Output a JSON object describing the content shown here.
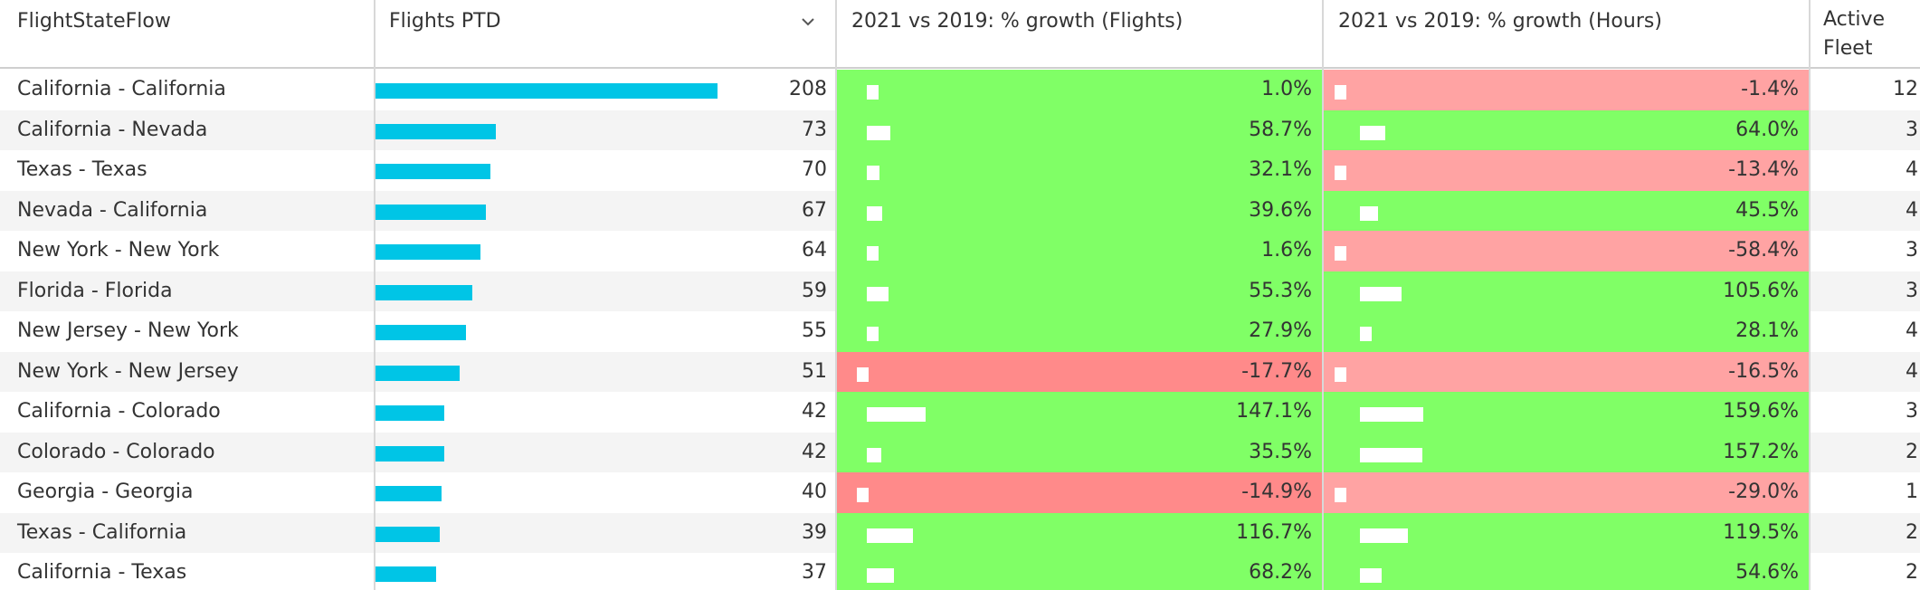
{
  "headers": {
    "label": "FlightStateFlow",
    "flights": "Flights PTD",
    "growth_flights": "2021 vs 2019: % growth (Flights)",
    "growth_hours": "2021 vs 2019: % growth (Hours)",
    "fleet_line1": "Active",
    "fleet_line2": "Fleet"
  },
  "sort_icon": "chevron-down-icon",
  "colors": {
    "flights_bar": "#00c5e6",
    "pos_flights": "#80ff66",
    "neg_flights": "#ff8a8a",
    "pos_hours": "#80ff66",
    "neg_hours": "#ffa3a3",
    "mini_bar": "#ffffff"
  },
  "flights_max": 208,
  "rows": [
    {
      "label": "California - California",
      "flights": 208,
      "flights_text": "208",
      "g_flights": 1.0,
      "g_flights_text": "1.0%",
      "g_hours": -1.4,
      "g_hours_text": "-1.4%",
      "fleet": "12"
    },
    {
      "label": "California - Nevada",
      "flights": 73,
      "flights_text": "73",
      "g_flights": 58.7,
      "g_flights_text": "58.7%",
      "g_hours": 64.0,
      "g_hours_text": "64.0%",
      "fleet": "3"
    },
    {
      "label": "Texas - Texas",
      "flights": 70,
      "flights_text": "70",
      "g_flights": 32.1,
      "g_flights_text": "32.1%",
      "g_hours": -13.4,
      "g_hours_text": "-13.4%",
      "fleet": "4"
    },
    {
      "label": "Nevada - California",
      "flights": 67,
      "flights_text": "67",
      "g_flights": 39.6,
      "g_flights_text": "39.6%",
      "g_hours": 45.5,
      "g_hours_text": "45.5%",
      "fleet": "4"
    },
    {
      "label": "New York - New York",
      "flights": 64,
      "flights_text": "64",
      "g_flights": 1.6,
      "g_flights_text": "1.6%",
      "g_hours": -58.4,
      "g_hours_text": "-58.4%",
      "fleet": "3"
    },
    {
      "label": "Florida - Florida",
      "flights": 59,
      "flights_text": "59",
      "g_flights": 55.3,
      "g_flights_text": "55.3%",
      "g_hours": 105.6,
      "g_hours_text": "105.6%",
      "fleet": "3"
    },
    {
      "label": "New Jersey - New York",
      "flights": 55,
      "flights_text": "55",
      "g_flights": 27.9,
      "g_flights_text": "27.9%",
      "g_hours": 28.1,
      "g_hours_text": "28.1%",
      "fleet": "4"
    },
    {
      "label": "New York - New Jersey",
      "flights": 51,
      "flights_text": "51",
      "g_flights": -17.7,
      "g_flights_text": "-17.7%",
      "g_hours": -16.5,
      "g_hours_text": "-16.5%",
      "fleet": "4"
    },
    {
      "label": "California - Colorado",
      "flights": 42,
      "flights_text": "42",
      "g_flights": 147.1,
      "g_flights_text": "147.1%",
      "g_hours": 159.6,
      "g_hours_text": "159.6%",
      "fleet": "3"
    },
    {
      "label": "Colorado - Colorado",
      "flights": 42,
      "flights_text": "42",
      "g_flights": 35.5,
      "g_flights_text": "35.5%",
      "g_hours": 157.2,
      "g_hours_text": "157.2%",
      "fleet": "2"
    },
    {
      "label": "Georgia - Georgia",
      "flights": 40,
      "flights_text": "40",
      "g_flights": -14.9,
      "g_flights_text": "-14.9%",
      "g_hours": -29.0,
      "g_hours_text": "-29.0%",
      "fleet": "1"
    },
    {
      "label": "Texas - California",
      "flights": 39,
      "flights_text": "39",
      "g_flights": 116.7,
      "g_flights_text": "116.7%",
      "g_hours": 119.5,
      "g_hours_text": "119.5%",
      "fleet": "2"
    },
    {
      "label": "California - Texas",
      "flights": 37,
      "flights_text": "37",
      "g_flights": 68.2,
      "g_flights_text": "68.2%",
      "g_hours": 54.6,
      "g_hours_text": "54.6%",
      "fleet": "2"
    }
  ]
}
